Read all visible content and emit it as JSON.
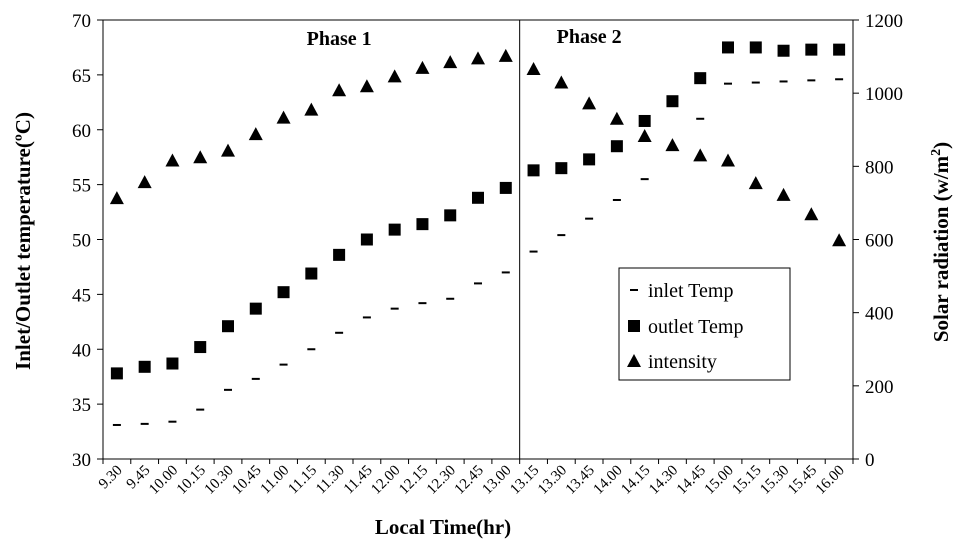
{
  "chart_data": {
    "type": "scatter",
    "xlabel": "Local Time(hr)",
    "ylabel_left": "Inlet/Outlet temperature(ºC)",
    "ylabel_right_prefix": "Solar radiation (w/m",
    "ylabel_right_sup": "2",
    "ylabel_right_suffix": ")",
    "y_left_lim": [
      30,
      70
    ],
    "y_left_ticks": [
      "30",
      "35",
      "40",
      "45",
      "50",
      "55",
      "60",
      "65",
      "70"
    ],
    "y_right_lim": [
      0,
      1200
    ],
    "y_right_ticks": [
      "0",
      "200",
      "400",
      "600",
      "800",
      "1000",
      "1200"
    ],
    "grid": false,
    "legend_position": "center-right",
    "categories": [
      "9.30",
      "9.45",
      "10.00",
      "10.15",
      "10.30",
      "10.45",
      "11.00",
      "11.15",
      "11.30",
      "11.45",
      "12.00",
      "12.15",
      "12.30",
      "12.45",
      "13.00",
      "13.15",
      "13.30",
      "13.45",
      "14.00",
      "14.15",
      "14.30",
      "14.45",
      "15.00",
      "15.15",
      "15.30",
      "15.45",
      "16.00"
    ],
    "divider_after_category": "13.00",
    "annotations": [
      {
        "text": "Phase 1",
        "category": "11.30",
        "y": 67.7
      },
      {
        "text": "Phase 2",
        "category": "13.45",
        "y": 67.9
      }
    ],
    "series": [
      {
        "name": "inlet Temp",
        "axis": "left",
        "marker": "dash",
        "values": [
          33.1,
          33.2,
          33.4,
          34.5,
          36.3,
          37.3,
          38.6,
          40.0,
          41.5,
          42.9,
          43.7,
          44.2,
          44.6,
          46.0,
          47.0,
          48.9,
          50.4,
          51.9,
          53.6,
          55.5,
          58.4,
          61.0,
          64.2,
          64.3,
          64.4,
          64.5,
          64.6
        ]
      },
      {
        "name": "outlet Temp",
        "axis": "left",
        "marker": "square",
        "values": [
          37.8,
          38.4,
          38.7,
          40.2,
          42.1,
          43.7,
          45.2,
          46.9,
          48.6,
          50.0,
          50.9,
          51.4,
          52.2,
          53.8,
          54.7,
          56.3,
          56.5,
          57.3,
          58.5,
          60.8,
          62.6,
          64.7,
          67.5,
          67.5,
          67.2,
          67.3,
          67.3
        ]
      },
      {
        "name": "intensity",
        "axis": "right",
        "marker": "triangle",
        "values": [
          713,
          757,
          816,
          825,
          843,
          888,
          933,
          955,
          1008,
          1019,
          1046,
          1069,
          1085,
          1095,
          1102,
          1066,
          1029,
          972,
          930,
          883,
          858,
          830,
          816,
          754,
          722,
          669,
          598
        ]
      }
    ]
  }
}
